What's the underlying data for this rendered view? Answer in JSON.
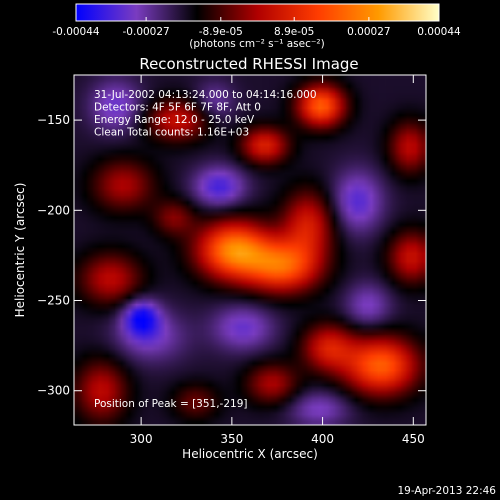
{
  "chart_data": {
    "type": "heatmap",
    "title": "Reconstructed RHESSI Image",
    "xlabel": "Heliocentric X (arcsec)",
    "ylabel": "Heliocentric Y (arcsec)",
    "xlim": [
      263,
      457
    ],
    "ylim": [
      -319,
      -125
    ],
    "x_ticks": [
      300,
      350,
      400,
      450
    ],
    "y_ticks": [
      -150,
      -200,
      -250,
      -300
    ],
    "colorbar": {
      "range": [
        -0.00044,
        0.00044
      ],
      "tick_values": [
        -0.00044,
        -0.00027,
        -8.9e-05,
        8.9e-05,
        0.00027,
        0.00044
      ],
      "tick_labels": [
        "-0.00044",
        "-0.00027",
        "-8.9e-05",
        "8.9e-05",
        "0.00027",
        "0.00044"
      ],
      "unit_label": "(photons cm⁻² s⁻¹ asec⁻²)",
      "colors": [
        "#0000ff",
        "#7a3cc0",
        "#000000",
        "#b00000",
        "#ff3c00",
        "#ff9a00",
        "#ffffc8"
      ]
    },
    "annotations": [
      "31-Jul-2002 04:13:24.000 to 04:14:16.000",
      "Detectors: 4F 5F 6F 7F 8F, Att 0",
      "Energy Range: 12.0 - 25.0 keV",
      "Clean    Total counts: 1.16E+03"
    ],
    "peak_label": "Position of Peak = [351,-219]",
    "peak": [
      351,
      -219
    ],
    "timestamp": "19-Apr-2013 22:46",
    "sources": [
      {
        "x": 351,
        "y": -222,
        "amp": 0.00044,
        "sx": 14,
        "sy": 11
      },
      {
        "x": 378,
        "y": -231,
        "amp": 0.00036,
        "sx": 14,
        "sy": 10
      },
      {
        "x": 392,
        "y": -208,
        "amp": 0.00024,
        "sx": 10,
        "sy": 13
      },
      {
        "x": 399,
        "y": -142,
        "amp": 0.00038,
        "sx": 9,
        "sy": 8
      },
      {
        "x": 368,
        "y": -164,
        "amp": 0.00026,
        "sx": 9,
        "sy": 7
      },
      {
        "x": 320,
        "y": -150,
        "amp": 0.00022,
        "sx": 12,
        "sy": 8
      },
      {
        "x": 290,
        "y": -186,
        "amp": 0.00018,
        "sx": 12,
        "sy": 10
      },
      {
        "x": 318,
        "y": -204,
        "amp": 0.00014,
        "sx": 8,
        "sy": 7
      },
      {
        "x": 283,
        "y": -238,
        "amp": 0.0002,
        "sx": 12,
        "sy": 10
      },
      {
        "x": 432,
        "y": -286,
        "amp": 0.00038,
        "sx": 14,
        "sy": 11
      },
      {
        "x": 403,
        "y": -276,
        "amp": 0.00024,
        "sx": 10,
        "sy": 9
      },
      {
        "x": 449,
        "y": -226,
        "amp": 0.00022,
        "sx": 9,
        "sy": 10
      },
      {
        "x": 448,
        "y": -165,
        "amp": 0.0002,
        "sx": 8,
        "sy": 10
      },
      {
        "x": 372,
        "y": -296,
        "amp": 0.00018,
        "sx": 10,
        "sy": 8
      },
      {
        "x": 278,
        "y": -300,
        "amp": 0.0002,
        "sx": 10,
        "sy": 12
      },
      {
        "x": 330,
        "y": -306,
        "amp": 0.00012,
        "sx": 9,
        "sy": 7
      },
      {
        "x": 305,
        "y": -270,
        "amp": -0.00012,
        "sx": 14,
        "sy": 10
      },
      {
        "x": 300,
        "y": -259,
        "amp": -0.00022,
        "sx": 7,
        "sy": 7
      },
      {
        "x": 343,
        "y": -187,
        "amp": -0.00018,
        "sx": 10,
        "sy": 8
      },
      {
        "x": 419,
        "y": -195,
        "amp": -0.00016,
        "sx": 10,
        "sy": 12
      },
      {
        "x": 286,
        "y": -142,
        "amp": -0.00014,
        "sx": 10,
        "sy": 10
      },
      {
        "x": 356,
        "y": -265,
        "amp": -0.00014,
        "sx": 12,
        "sy": 9
      },
      {
        "x": 425,
        "y": -253,
        "amp": -0.00012,
        "sx": 9,
        "sy": 9
      },
      {
        "x": 398,
        "y": -310,
        "amp": -0.00012,
        "sx": 12,
        "sy": 7
      },
      {
        "x": 340,
        "y": -140,
        "amp": -0.0001,
        "sx": 8,
        "sy": 8
      }
    ]
  }
}
